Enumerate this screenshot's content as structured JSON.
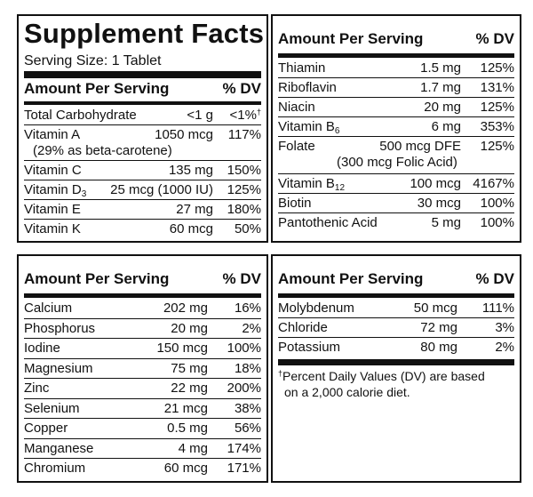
{
  "title": "Supplement Facts",
  "serving_size": "Serving Size: 1 Tablet",
  "header": {
    "amount_label": "Amount Per Serving",
    "dv_label": "% DV"
  },
  "panel1": {
    "rows": [
      {
        "name": "Total Carbohydrate",
        "amount": "<1 g",
        "dv": "<1%",
        "dv_mark": "†"
      },
      {
        "name": "Vitamin A",
        "amount": "1050 mcg",
        "dv": "117%",
        "sub": "(29% as beta-carotene)"
      },
      {
        "name": "Vitamin C",
        "amount": "135 mg",
        "dv": "150%"
      },
      {
        "name": "Vitamin D",
        "name_sub": "3",
        "amount": "25 mcg (1000 IU)",
        "dv": "125%"
      },
      {
        "name": "Vitamin E",
        "amount": "27 mg",
        "dv": "180%"
      },
      {
        "name": "Vitamin K",
        "amount": "60 mcg",
        "dv": "50%"
      }
    ]
  },
  "panel2": {
    "rows": [
      {
        "name": "Thiamin",
        "amount": "1.5 mg",
        "dv": "125%"
      },
      {
        "name": "Riboflavin",
        "amount": "1.7 mg",
        "dv": "131%"
      },
      {
        "name": "Niacin",
        "amount": "20 mg",
        "dv": "125%"
      },
      {
        "name": "Vitamin B",
        "name_sub": "6",
        "amount": "6 mg",
        "dv": "353%"
      },
      {
        "name": "Folate",
        "amount": "500 mcg DFE",
        "dv": "125%",
        "sub": "(300 mcg Folic Acid)"
      },
      {
        "name": "Vitamin B",
        "name_sub": "12",
        "amount": "100 mcg",
        "dv": "4167%"
      },
      {
        "name": "Biotin",
        "amount": "30 mcg",
        "dv": "100%"
      },
      {
        "name": "Pantothenic Acid",
        "amount": "5 mg",
        "dv": "100%"
      }
    ]
  },
  "panel3": {
    "rows": [
      {
        "name": "Calcium",
        "amount": "202 mg",
        "dv": "16%"
      },
      {
        "name": "Phosphorus",
        "amount": "20 mg",
        "dv": "2%"
      },
      {
        "name": "Iodine",
        "amount": "150 mcg",
        "dv": "100%"
      },
      {
        "name": "Magnesium",
        "amount": "75 mg",
        "dv": "18%"
      },
      {
        "name": "Zinc",
        "amount": "22 mg",
        "dv": "200%"
      },
      {
        "name": "Selenium",
        "amount": "21 mcg",
        "dv": "38%"
      },
      {
        "name": "Copper",
        "amount": "0.5 mg",
        "dv": "56%"
      },
      {
        "name": "Manganese",
        "amount": "4 mg",
        "dv": "174%"
      },
      {
        "name": "Chromium",
        "amount": "60 mcg",
        "dv": "171%"
      }
    ]
  },
  "panel4": {
    "rows": [
      {
        "name": "Molybdenum",
        "amount": "50 mcg",
        "dv": "111%"
      },
      {
        "name": "Chloride",
        "amount": "72 mg",
        "dv": "3%"
      },
      {
        "name": "Potassium",
        "amount": "80 mg",
        "dv": "2%"
      }
    ]
  },
  "footnote": {
    "mark": "†",
    "line1": "Percent Daily Values (DV) are based",
    "line2": "on a 2,000 calorie diet."
  }
}
